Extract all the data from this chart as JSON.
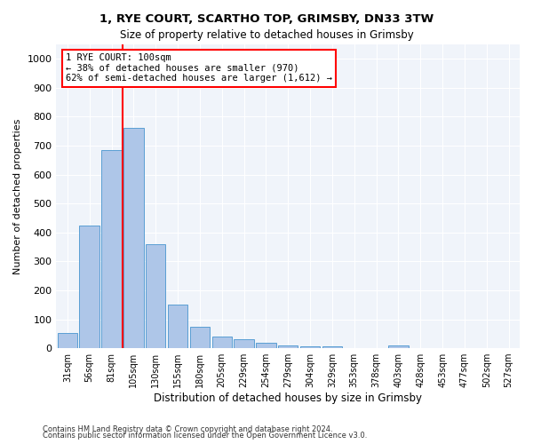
{
  "title1": "1, RYE COURT, SCARTHO TOP, GRIMSBY, DN33 3TW",
  "title2": "Size of property relative to detached houses in Grimsby",
  "xlabel": "Distribution of detached houses by size in Grimsby",
  "ylabel": "Number of detached properties",
  "footnote1": "Contains HM Land Registry data © Crown copyright and database right 2024.",
  "footnote2": "Contains public sector information licensed under the Open Government Licence v3.0.",
  "annotation_line1": "1 RYE COURT: 100sqm",
  "annotation_line2": "← 38% of detached houses are smaller (970)",
  "annotation_line3": "62% of semi-detached houses are larger (1,612) →",
  "bar_color": "#aec6e8",
  "bar_edge_color": "#5a9fd4",
  "vline_color": "red",
  "vline_x": 2,
  "categories": [
    "31sqm",
    "56sqm",
    "81sqm",
    "105sqm",
    "130sqm",
    "155sqm",
    "180sqm",
    "205sqm",
    "229sqm",
    "254sqm",
    "279sqm",
    "304sqm",
    "329sqm",
    "353sqm",
    "378sqm",
    "403sqm",
    "428sqm",
    "453sqm",
    "477sqm",
    "502sqm",
    "527sqm"
  ],
  "values": [
    52,
    425,
    685,
    760,
    360,
    150,
    75,
    40,
    30,
    20,
    10,
    7,
    5,
    0,
    0,
    10,
    0,
    0,
    0,
    0,
    0
  ],
  "ylim": [
    0,
    1050
  ],
  "yticks": [
    0,
    100,
    200,
    300,
    400,
    500,
    600,
    700,
    800,
    900,
    1000
  ],
  "background_color": "#f0f4fa",
  "plot_bg_color": "#f0f4fa"
}
